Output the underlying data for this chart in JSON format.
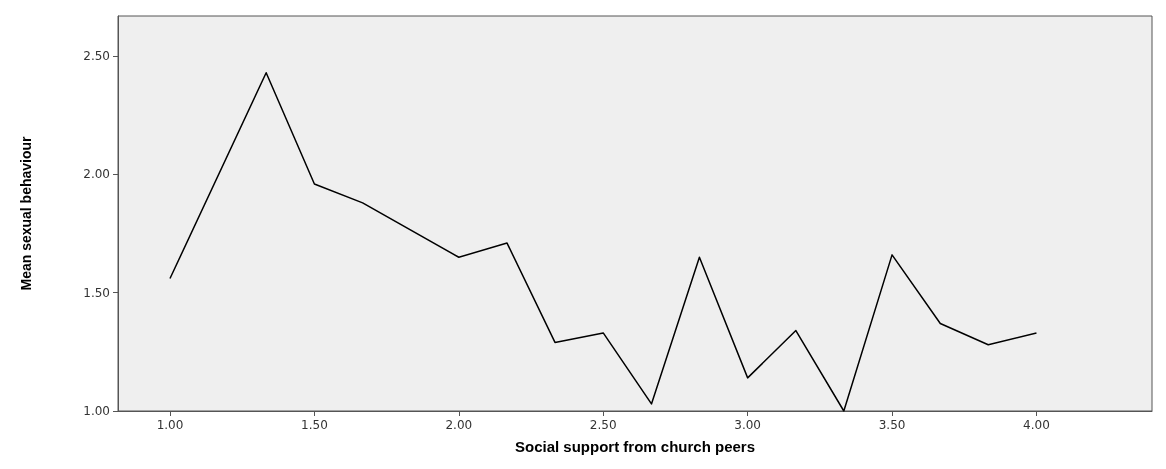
{
  "chart_data": {
    "type": "line",
    "xlabel": "Social support from church peers",
    "ylabel": "Mean sexual behaviour",
    "x": [
      1,
      1.333,
      1.5,
      1.667,
      2,
      2.167,
      2.333,
      2.5,
      2.667,
      2.833,
      3,
      3.167,
      3.333,
      3.5,
      3.667,
      3.833,
      4
    ],
    "series": [
      {
        "color": "#000000",
        "values": [
          1.56,
          2.43,
          1.96,
          1.88,
          1.65,
          1.71,
          1.29,
          1.33,
          1.03,
          1.65,
          1.14,
          1.34,
          1.0,
          1.66,
          1.37,
          1.28,
          1.33
        ]
      }
    ],
    "xlim": [
      0.82,
      4.4
    ],
    "ylim": [
      1,
      2.67
    ],
    "xticks": [
      {
        "value": 1,
        "label": "1.00"
      },
      {
        "value": 1.5,
        "label": "1.50"
      },
      {
        "value": 2,
        "label": "2.00"
      },
      {
        "value": 2.5,
        "label": "2.50"
      },
      {
        "value": 3,
        "label": "3.00"
      },
      {
        "value": 3.5,
        "label": "3.50"
      },
      {
        "value": 4,
        "label": "4.00"
      }
    ],
    "yticks": [
      {
        "value": 1,
        "label": "1.00"
      },
      {
        "value": 1.5,
        "label": "1.50"
      },
      {
        "value": 2,
        "label": "2.00"
      },
      {
        "value": 2.5,
        "label": "2.50"
      }
    ],
    "grid": false,
    "marker": "none",
    "line_style": "solid"
  }
}
